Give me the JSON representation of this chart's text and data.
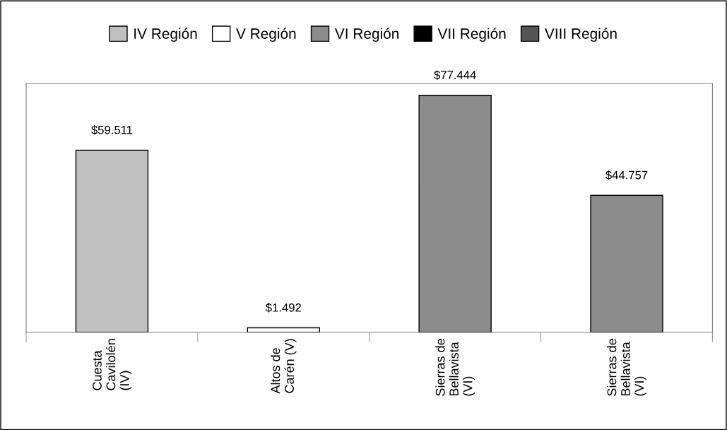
{
  "chart_data": {
    "type": "bar",
    "categories": [
      "Cuesta\nCavilolén\n(IV)",
      "Altos de\nCarén (V)",
      "Sierras de\nBellavista\n(VI)",
      "Sierras de\nBellavista\n(VI)"
    ],
    "series": [
      {
        "name": "IV Región",
        "color": "#c0c0c0",
        "values": [
          59511,
          null,
          null,
          null
        ],
        "value_labels": [
          "$59.511",
          null,
          null,
          null
        ]
      },
      {
        "name": "V Región",
        "color": "#ffffff",
        "values": [
          null,
          1492,
          null,
          null
        ],
        "value_labels": [
          null,
          "$1.492",
          null,
          null
        ]
      },
      {
        "name": "VI Región",
        "color": "#8c8c8c",
        "values": [
          null,
          null,
          77444,
          44757
        ],
        "value_labels": [
          null,
          null,
          "$77.444",
          "$44.757"
        ]
      },
      {
        "name": "VII Región",
        "color": "#000000",
        "values": [
          null,
          null,
          null,
          null
        ]
      },
      {
        "name": "VIII Región",
        "color": "#555555",
        "values": [
          null,
          null,
          null,
          null
        ]
      }
    ],
    "legend": "top",
    "grid": false
  }
}
